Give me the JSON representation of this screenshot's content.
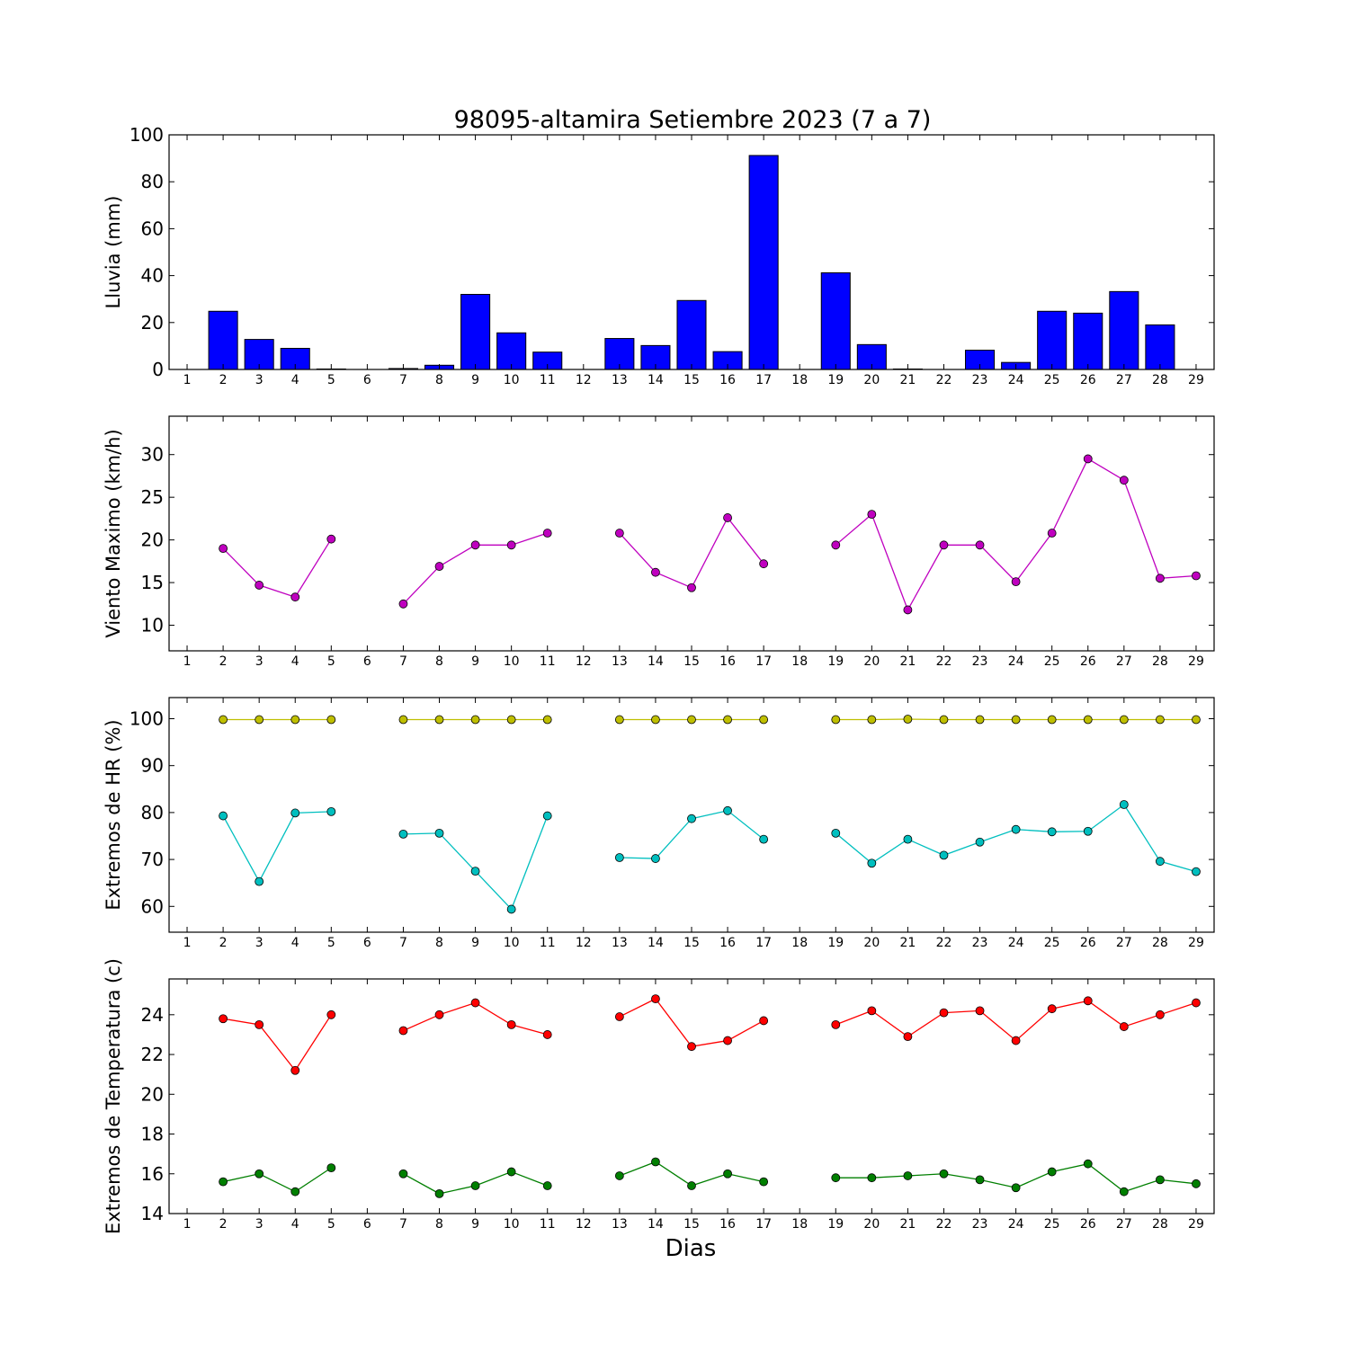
{
  "figure": {
    "title": "98095-altamira Setiembre 2023  (7 a 7)",
    "xlabel": "Dias"
  },
  "chart_data": [
    {
      "type": "bar",
      "ylabel": "Lluvia (mm)",
      "x": [
        1,
        2,
        3,
        4,
        5,
        6,
        7,
        8,
        9,
        10,
        11,
        12,
        13,
        14,
        15,
        16,
        17,
        18,
        19,
        20,
        21,
        22,
        23,
        24,
        25,
        26,
        27,
        28,
        29
      ],
      "xlim": [
        0.5,
        29.5
      ],
      "ylim": [
        0,
        100
      ],
      "yticks": [
        0,
        20,
        40,
        60,
        80,
        100
      ],
      "series": [
        {
          "color": "#0000ff",
          "values": [
            0,
            24.8,
            12.8,
            9.0,
            0.2,
            0,
            0.4,
            1.8,
            32.0,
            15.6,
            7.4,
            0,
            13.2,
            10.2,
            29.4,
            7.6,
            91.2,
            0,
            41.2,
            10.6,
            0.2,
            0,
            8.2,
            3.0,
            24.8,
            24.0,
            33.2,
            19.0,
            0
          ]
        }
      ]
    },
    {
      "type": "line",
      "ylabel": "Viento Maximo (km/h)",
      "x": [
        1,
        2,
        3,
        4,
        5,
        6,
        7,
        8,
        9,
        10,
        11,
        12,
        13,
        14,
        15,
        16,
        17,
        18,
        19,
        20,
        21,
        22,
        23,
        24,
        25,
        26,
        27,
        28,
        29
      ],
      "xlim": [
        0.5,
        29.5
      ],
      "ylim": [
        7,
        34.5
      ],
      "yticks": [
        10,
        15,
        20,
        25,
        30
      ],
      "series": [
        {
          "color": "#bf00bf",
          "values": [
            null,
            19.0,
            14.7,
            13.3,
            20.1,
            null,
            12.5,
            16.9,
            19.4,
            19.4,
            20.8,
            null,
            20.8,
            16.2,
            14.4,
            22.6,
            17.2,
            null,
            19.4,
            23.0,
            11.8,
            19.4,
            19.4,
            15.1,
            20.8,
            29.5,
            27.0,
            15.5,
            15.8
          ]
        }
      ]
    },
    {
      "type": "line",
      "ylabel": "Extremos de HR (%)",
      "x": [
        1,
        2,
        3,
        4,
        5,
        6,
        7,
        8,
        9,
        10,
        11,
        12,
        13,
        14,
        15,
        16,
        17,
        18,
        19,
        20,
        21,
        22,
        23,
        24,
        25,
        26,
        27,
        28,
        29
      ],
      "xlim": [
        0.5,
        29.5
      ],
      "ylim": [
        54.5,
        104.5
      ],
      "yticks": [
        60,
        70,
        80,
        90,
        100
      ],
      "series": [
        {
          "color": "#bfbf00",
          "values": [
            null,
            99.8,
            99.8,
            99.8,
            99.8,
            null,
            99.8,
            99.8,
            99.8,
            99.8,
            99.8,
            null,
            99.8,
            99.8,
            99.8,
            99.8,
            99.8,
            null,
            99.8,
            99.8,
            99.9,
            99.8,
            99.8,
            99.8,
            99.8,
            99.8,
            99.8,
            99.8,
            99.8
          ]
        },
        {
          "color": "#00bfbf",
          "values": [
            null,
            79.3,
            65.3,
            79.9,
            80.2,
            null,
            75.4,
            75.6,
            67.5,
            59.4,
            79.3,
            null,
            70.4,
            70.2,
            78.7,
            80.4,
            74.3,
            null,
            75.6,
            69.2,
            74.3,
            70.9,
            73.7,
            76.4,
            75.9,
            76.0,
            81.7,
            69.6,
            67.4
          ]
        }
      ]
    },
    {
      "type": "line",
      "ylabel": "Extremos de Temperatura (c)",
      "x": [
        1,
        2,
        3,
        4,
        5,
        6,
        7,
        8,
        9,
        10,
        11,
        12,
        13,
        14,
        15,
        16,
        17,
        18,
        19,
        20,
        21,
        22,
        23,
        24,
        25,
        26,
        27,
        28,
        29
      ],
      "xlim": [
        0.5,
        29.5
      ],
      "ylim": [
        14,
        25.8
      ],
      "yticks": [
        14,
        16,
        18,
        20,
        22,
        24
      ],
      "series": [
        {
          "color": "#ff0000",
          "values": [
            null,
            23.8,
            23.5,
            21.2,
            24.0,
            null,
            23.2,
            24.0,
            24.6,
            23.5,
            23.0,
            null,
            23.9,
            24.8,
            22.4,
            22.7,
            23.7,
            null,
            23.5,
            24.2,
            22.9,
            24.1,
            24.2,
            22.7,
            24.3,
            24.7,
            23.4,
            24.0,
            24.6
          ]
        },
        {
          "color": "#007f00",
          "values": [
            null,
            15.6,
            16.0,
            15.1,
            16.3,
            null,
            16.0,
            15.0,
            15.4,
            16.1,
            15.4,
            null,
            15.9,
            16.6,
            15.4,
            16.0,
            15.6,
            null,
            15.8,
            15.8,
            15.9,
            16.0,
            15.7,
            15.3,
            16.1,
            16.5,
            15.1,
            15.7,
            15.5
          ]
        }
      ]
    }
  ]
}
